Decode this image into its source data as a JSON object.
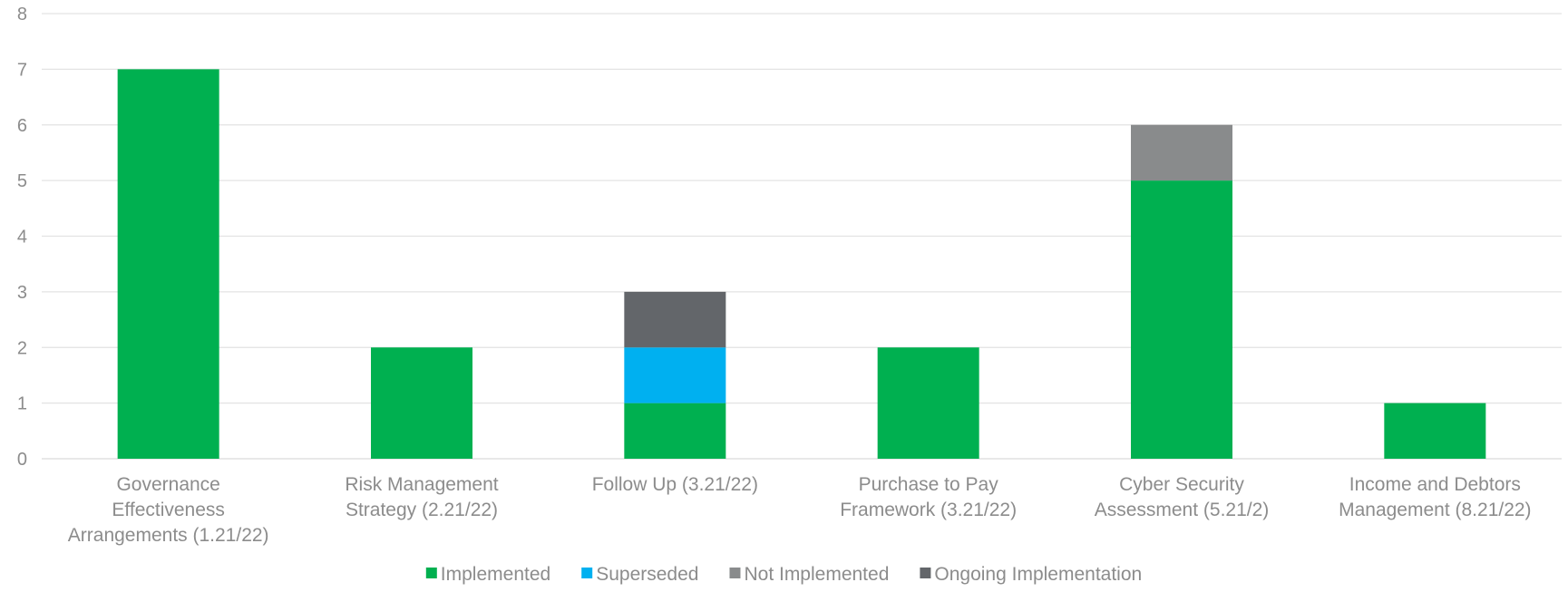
{
  "chart_data": {
    "type": "bar",
    "stacked": true,
    "title": "",
    "xlabel": "",
    "ylabel": "",
    "ylim": [
      0,
      8
    ],
    "yticks": [
      0,
      1,
      2,
      3,
      4,
      5,
      6,
      7,
      8
    ],
    "grid": true,
    "legend_position": "bottom",
    "categories": [
      [
        "Governance",
        "Effectiveness",
        "Arrangements (1.21/22)"
      ],
      [
        "Risk Management",
        "Strategy (2.21/22)"
      ],
      [
        "Follow Up (3.21/22)"
      ],
      [
        "Purchase to Pay",
        "Framework (3.21/22)"
      ],
      [
        "Cyber Security",
        "Assessment (5.21/2)"
      ],
      [
        "Income and Debtors",
        "Management (8.21/22)"
      ]
    ],
    "series": [
      {
        "name": "Implemented",
        "color": "#00b050",
        "values": [
          7,
          2,
          1,
          2,
          5,
          1
        ]
      },
      {
        "name": "Superseded",
        "color": "#00b0f0",
        "values": [
          0,
          0,
          1,
          0,
          0,
          0
        ]
      },
      {
        "name": "Not Implemented",
        "color": "#898b8c",
        "values": [
          0,
          0,
          0,
          0,
          1,
          0
        ]
      },
      {
        "name": "Ongoing Implementation",
        "color": "#63666a",
        "values": [
          0,
          0,
          1,
          0,
          0,
          0
        ]
      }
    ]
  }
}
